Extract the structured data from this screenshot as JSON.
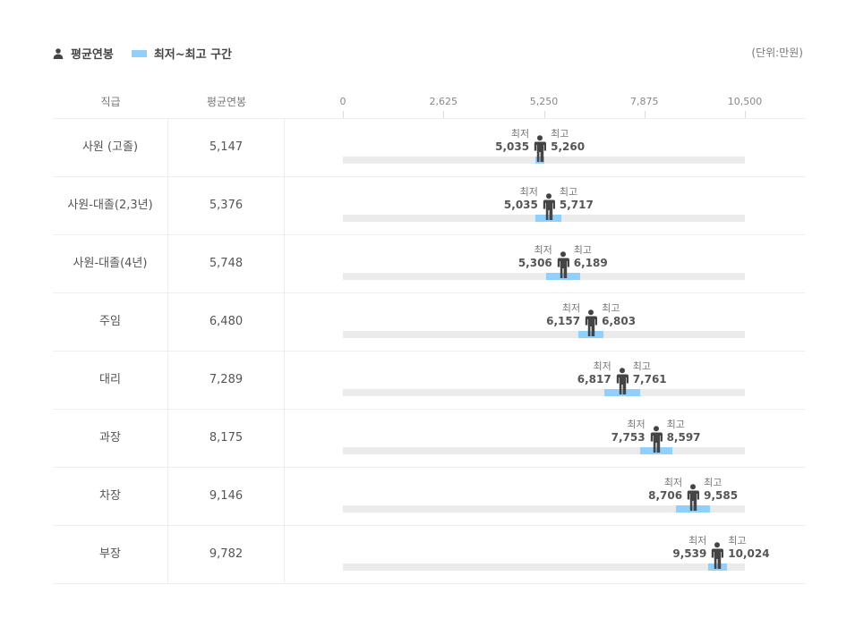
{
  "legend": {
    "avg_label": "평균연봉",
    "range_label": "최저~최고 구간",
    "avg_icon": "person-icon"
  },
  "unit": "(단위:만원)",
  "headers": {
    "rank": "직급",
    "avg": "평균연봉"
  },
  "colors": {
    "range": "#8fd0ff",
    "track": "#ebebeb",
    "icon": "#444444"
  },
  "chart_data": {
    "type": "bar",
    "xlim": [
      0,
      10500
    ],
    "ticks": [
      "0",
      "2,625",
      "5,250",
      "7,875",
      "10,500"
    ],
    "min_label": "최저",
    "max_label": "최고",
    "rows": [
      {
        "rank": "사원 (고졸)",
        "avg": "5,147",
        "min": "5,035",
        "max": "5,260"
      },
      {
        "rank": "사원-대졸(2,3년)",
        "avg": "5,376",
        "min": "5,035",
        "max": "5,717"
      },
      {
        "rank": "사원-대졸(4년)",
        "avg": "5,748",
        "min": "5,306",
        "max": "6,189"
      },
      {
        "rank": "주임",
        "avg": "6,480",
        "min": "6,157",
        "max": "6,803"
      },
      {
        "rank": "대리",
        "avg": "7,289",
        "min": "6,817",
        "max": "7,761"
      },
      {
        "rank": "과장",
        "avg": "8,175",
        "min": "7,753",
        "max": "8,597"
      },
      {
        "rank": "차장",
        "avg": "9,146",
        "min": "8,706",
        "max": "9,585"
      },
      {
        "rank": "부장",
        "avg": "9,782",
        "min": "9,539",
        "max": "10,024"
      }
    ]
  }
}
